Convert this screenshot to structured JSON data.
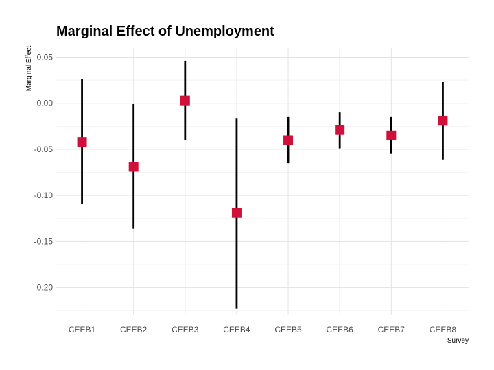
{
  "chart_data": {
    "type": "scatter",
    "subtype": "point-range",
    "title": "Marginal Effect of Unemployment",
    "xlabel": "Survey",
    "ylabel": "Marginal Effect",
    "categories": [
      "CEEB1",
      "CEEB2",
      "CEEB3",
      "CEEB4",
      "CEEB5",
      "CEEB6",
      "CEEB7",
      "CEEB8"
    ],
    "series": [
      {
        "values": [
          -0.042,
          -0.069,
          0.003,
          -0.119,
          -0.04,
          -0.029,
          -0.035,
          -0.019
        ],
        "lower": [
          -0.109,
          -0.136,
          -0.04,
          -0.223,
          -0.065,
          -0.049,
          -0.055,
          -0.061
        ],
        "upper": [
          0.026,
          -0.001,
          0.046,
          -0.016,
          -0.015,
          -0.01,
          -0.015,
          0.023
        ]
      }
    ],
    "y_ticks": [
      0.05,
      0.0,
      -0.05,
      -0.1,
      -0.15,
      -0.2
    ],
    "y_tick_labels": [
      "0.05",
      "0.00",
      "-0.05",
      "-0.10",
      "-0.15",
      "-0.20"
    ],
    "ylim": [
      -0.23,
      0.06
    ],
    "grid": true,
    "legend": "none",
    "colors": {
      "point": "#d0103a",
      "range": "#000000"
    }
  }
}
